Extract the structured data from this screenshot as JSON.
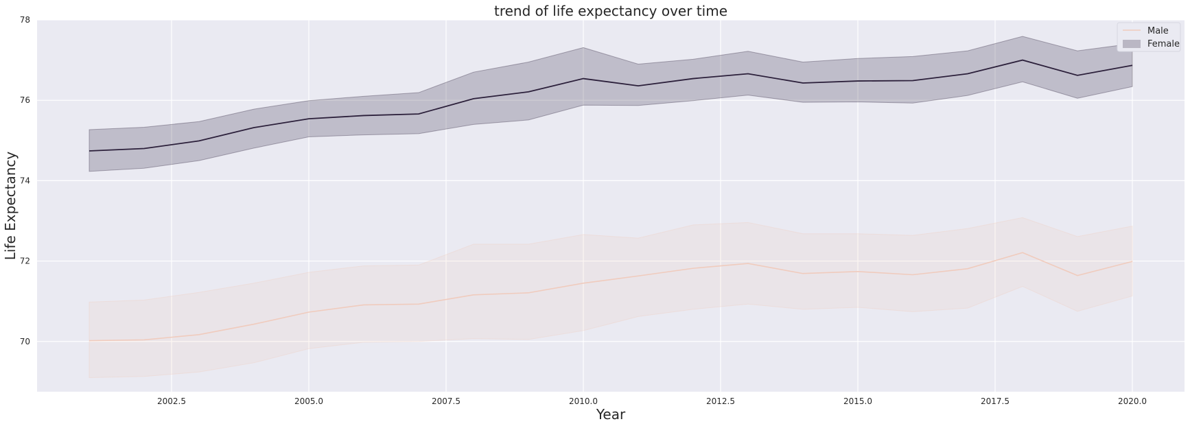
{
  "chart_data": {
    "type": "line",
    "title": "trend of life expectancy over time",
    "xlabel": "Year",
    "ylabel": "Life Expectancy",
    "xlim": [
      2000.05,
      2020.95
    ],
    "ylim": [
      68.75,
      78
    ],
    "xticks": [
      2002.5,
      2005.0,
      2007.5,
      2010.0,
      2012.5,
      2015.0,
      2017.5,
      2020.0
    ],
    "xtick_labels": [
      "2002.5",
      "2005.0",
      "2007.5",
      "2010.0",
      "2012.5",
      "2015.0",
      "2017.5",
      "2020.0"
    ],
    "yticks": [
      70,
      72,
      74,
      76,
      78
    ],
    "ytick_labels": [
      "70",
      "72",
      "74",
      "76",
      "78"
    ],
    "grid": true,
    "legend_position": "top-right",
    "background": "#eaeaf2",
    "x": [
      2001,
      2002,
      2003,
      2004,
      2005,
      2006,
      2007,
      2008,
      2009,
      2010,
      2011,
      2012,
      2013,
      2014,
      2015,
      2016,
      2017,
      2018,
      2019,
      2020
    ],
    "series": [
      {
        "name": "Male",
        "color": "#f0cbbd",
        "values": [
          70.02,
          70.04,
          70.17,
          70.43,
          70.73,
          70.91,
          70.93,
          71.16,
          71.21,
          71.45,
          71.63,
          71.82,
          71.94,
          71.69,
          71.74,
          71.66,
          71.81,
          72.21,
          71.64,
          71.99
        ],
        "lower": [
          69.1,
          69.13,
          69.24,
          69.47,
          69.82,
          69.98,
          70.0,
          70.07,
          70.05,
          70.27,
          70.62,
          70.8,
          70.93,
          70.8,
          70.85,
          70.74,
          70.83,
          71.37,
          70.75,
          71.13
        ],
        "upper": [
          70.98,
          71.03,
          71.22,
          71.45,
          71.72,
          71.88,
          71.9,
          72.42,
          72.42,
          72.66,
          72.57,
          72.9,
          72.96,
          72.68,
          72.68,
          72.64,
          72.81,
          73.08,
          72.61,
          72.87
        ]
      },
      {
        "name": "Female",
        "color": "#2b1f3a",
        "values": [
          74.74,
          74.8,
          74.99,
          75.32,
          75.54,
          75.62,
          75.66,
          76.04,
          76.21,
          76.54,
          76.36,
          76.54,
          76.66,
          76.43,
          76.48,
          76.49,
          76.66,
          77.0,
          76.62,
          76.87
        ],
        "lower": [
          74.23,
          74.31,
          74.5,
          74.81,
          75.09,
          75.14,
          75.17,
          75.4,
          75.51,
          75.88,
          75.87,
          75.99,
          76.13,
          75.95,
          75.96,
          75.93,
          76.12,
          76.46,
          76.05,
          76.34
        ],
        "upper": [
          75.27,
          75.33,
          75.47,
          75.78,
          75.99,
          76.1,
          76.19,
          76.7,
          76.95,
          77.31,
          76.9,
          77.02,
          77.22,
          76.95,
          77.04,
          77.09,
          77.23,
          77.59,
          77.23,
          77.41
        ]
      }
    ]
  }
}
